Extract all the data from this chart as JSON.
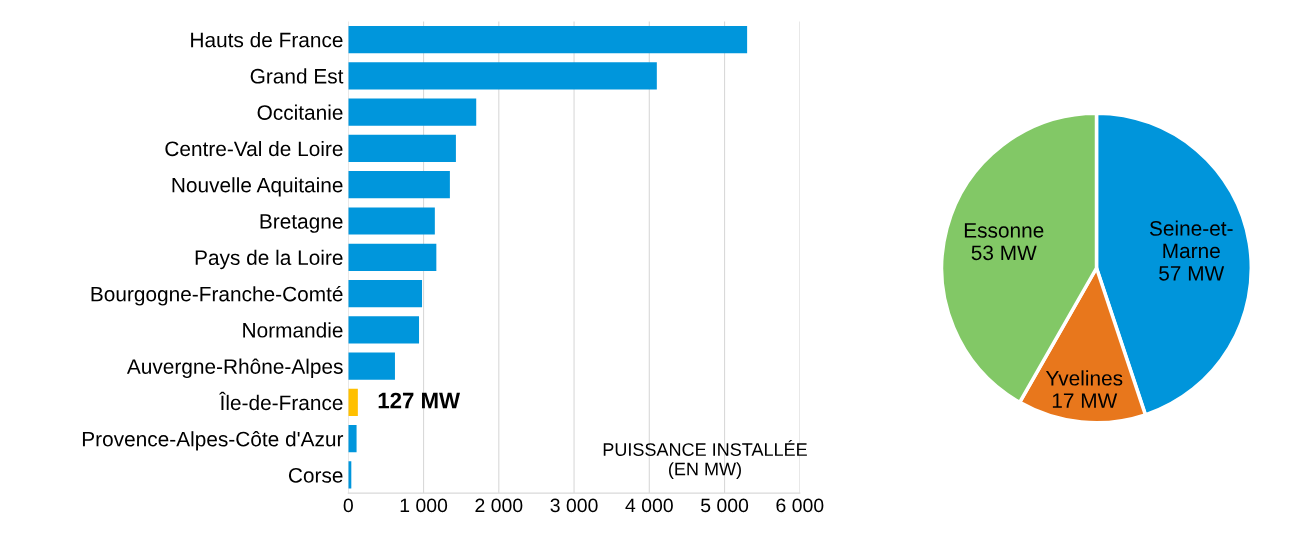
{
  "chart_data": [
    {
      "type": "bar",
      "orientation": "horizontal",
      "xlabel": "PUISSANCE INSTALLÉE\n(EN MW)",
      "categories": [
        "Hauts de France",
        "Grand Est",
        "Occitanie",
        "Centre-Val de Loire",
        "Nouvelle Aquitaine",
        "Bretagne",
        "Pays de la Loire",
        "Bourgogne-Franche-Comté",
        "Normandie",
        "Auvergne-Rhône-Alpes",
        "Île-de-France",
        "Provence-Alpes-Côte d'Azur",
        "Corse"
      ],
      "values": [
        5300,
        4100,
        1700,
        1430,
        1350,
        1150,
        1170,
        980,
        940,
        620,
        127,
        110,
        40
      ],
      "colors": [
        "#0096dc",
        "#0096dc",
        "#0096dc",
        "#0096dc",
        "#0096dc",
        "#0096dc",
        "#0096dc",
        "#0096dc",
        "#0096dc",
        "#0096dc",
        "#ffc000",
        "#0096dc",
        "#0096dc"
      ],
      "value_labels": [
        null,
        null,
        null,
        null,
        null,
        null,
        null,
        null,
        null,
        null,
        "127 MW",
        null,
        null
      ],
      "xlim": [
        0,
        6000
      ],
      "xticks": [
        0,
        {
          "value": 1000,
          "label": "1 000"
        },
        {
          "value": 2000,
          "label": "2 000"
        },
        {
          "value": 3000,
          "label": "3 000"
        },
        {
          "value": 4000,
          "label": "4 000"
        },
        {
          "value": 5000,
          "label": "5 000"
        },
        {
          "value": 6000,
          "label": "6 000"
        }
      ],
      "grid": "x",
      "legend": false
    },
    {
      "type": "pie",
      "categories": [
        "Seine-et-\nMarne",
        "Yvelines",
        "Essonne"
      ],
      "values": [
        57,
        17,
        53
      ],
      "colors": [
        "#0095db",
        "#e8771c",
        "#82c866"
      ],
      "value_labels": [
        "57 MW",
        "17 MW",
        "53 MW"
      ],
      "legend": false
    }
  ]
}
